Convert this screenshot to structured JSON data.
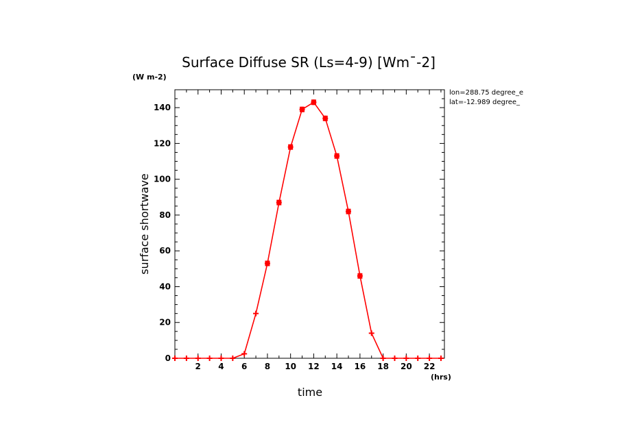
{
  "chart_data": {
    "type": "line",
    "title": "Surface Diffuse SR (Ls=4-9) [Wm¯-2]",
    "y_units": "(W m-2)",
    "x_units": "(hrs)",
    "xlabel": "time",
    "ylabel": "surface shortwave",
    "annotations": [
      "lon=288.75 degree_e",
      "lat=-12.989 degree_"
    ],
    "xlim": [
      0,
      23.3
    ],
    "ylim": [
      0,
      150
    ],
    "xticks": [
      2,
      4,
      6,
      8,
      10,
      12,
      14,
      16,
      18,
      20,
      22
    ],
    "yticks": [
      0,
      20,
      40,
      60,
      80,
      100,
      120,
      140
    ],
    "grid": false,
    "legend": "none",
    "line_color": "#ff0000",
    "series": [
      {
        "x": [
          0,
          1,
          2,
          3,
          4,
          5,
          6,
          7,
          8,
          9,
          10,
          11,
          12,
          13,
          14,
          15,
          16,
          17,
          18,
          19,
          20,
          21,
          22,
          23
        ],
        "values": [
          0,
          0,
          0,
          0,
          0,
          0,
          2.5,
          25,
          53,
          87,
          118,
          139,
          143,
          134,
          113,
          82,
          46,
          14,
          0,
          0,
          0,
          0,
          0,
          0
        ]
      }
    ]
  }
}
